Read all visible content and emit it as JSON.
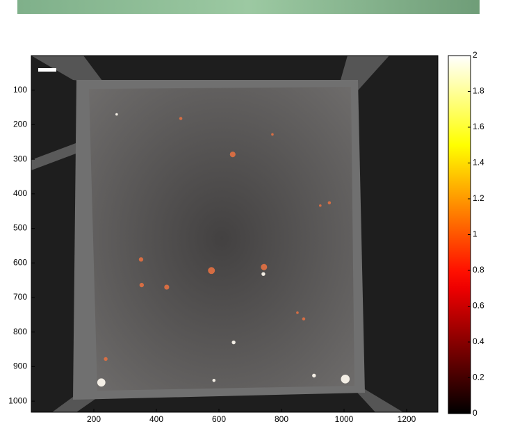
{
  "chart_data": {
    "type": "image",
    "colormap": "hot",
    "xlim": [
      0,
      1300
    ],
    "ylim": [
      0,
      1032
    ],
    "y_reversed": true,
    "xticks": [
      200,
      400,
      600,
      800,
      1000,
      1200
    ],
    "yticks": [
      100,
      200,
      300,
      400,
      500,
      600,
      700,
      800,
      900,
      1000
    ],
    "clim": [
      0,
      2
    ],
    "cticks": [
      0,
      0.2,
      0.4,
      0.6,
      0.8,
      1,
      1.2,
      1.4,
      1.6,
      1.8,
      2
    ],
    "spots": {
      "x": [
        273,
        478,
        771,
        644,
        953,
        924,
        351,
        576,
        744,
        742,
        353,
        433,
        851,
        871,
        647,
        238,
        224,
        584,
        904,
        1004
      ],
      "y": [
        170,
        182,
        228,
        286,
        426,
        434,
        590,
        622,
        612,
        632,
        664,
        670,
        744,
        762,
        830,
        878,
        946,
        940,
        926,
        936
      ],
      "values": [
        2,
        0.9,
        0.9,
        0.9,
        0.9,
        0.9,
        0.9,
        0.9,
        0.9,
        2,
        0.9,
        0.9,
        0.9,
        0.9,
        2,
        0.9,
        2,
        2,
        2,
        2
      ],
      "size": [
        8,
        10,
        8,
        18,
        10,
        8,
        14,
        22,
        20,
        12,
        14,
        16,
        8,
        10,
        12,
        12,
        26,
        10,
        12,
        28
      ]
    }
  }
}
